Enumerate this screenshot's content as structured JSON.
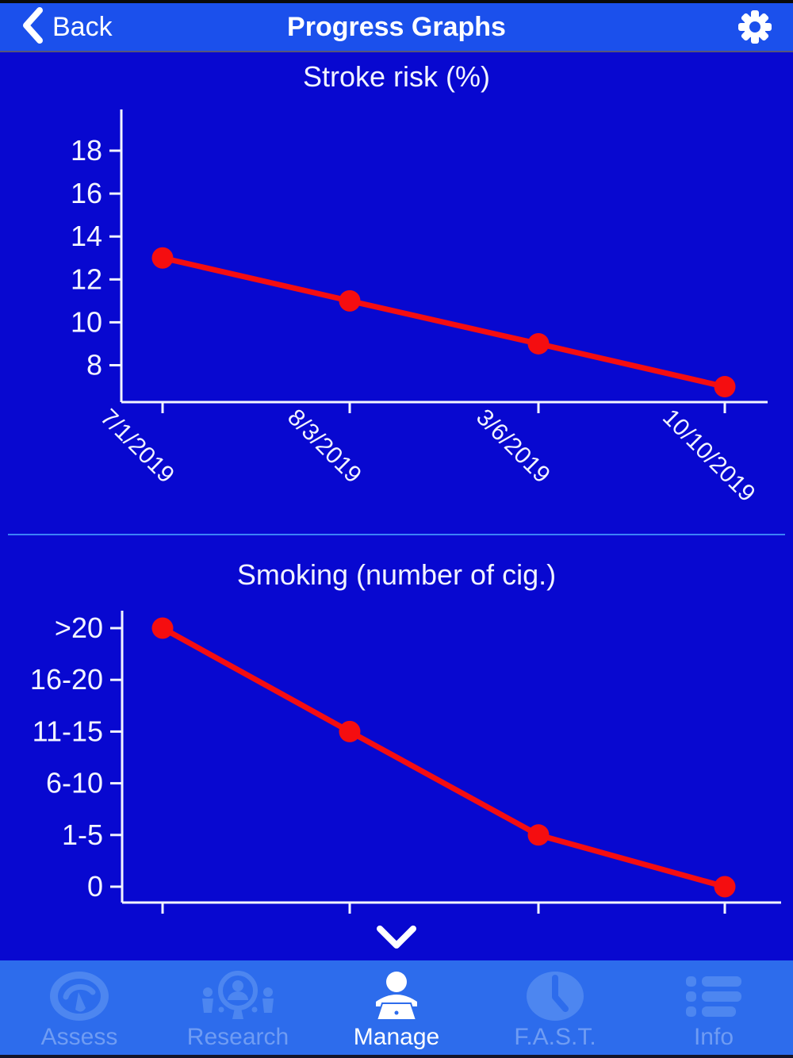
{
  "header": {
    "back_label": "Back",
    "title": "Progress Graphs"
  },
  "colors": {
    "body_background": "#0808d0",
    "header_background": "#1b50ec",
    "tabbar_background": "#2d6cec",
    "tab_icon": "#4d86f0",
    "tab_icon_active": "#ffffff",
    "series_red": "#f50d10",
    "axis_white": "#f2f4ff",
    "divider_blue": "#3b82f6"
  },
  "chart_data": [
    {
      "type": "line",
      "title": "Stroke risk (%)",
      "x_labels": [
        "7/1/2019",
        "8/3/2019",
        "3/6/2019",
        "10/10/2019"
      ],
      "y_ticks": [
        "8",
        "10",
        "12",
        "14",
        "16",
        "18"
      ],
      "ylim": [
        8,
        18
      ],
      "values": [
        13,
        11,
        9,
        7
      ],
      "series_color": "#f50d10",
      "grid": false,
      "legend": "none"
    },
    {
      "type": "line",
      "title": "Smoking (number of cig.)",
      "x_labels": [],
      "x_tick_count": 4,
      "y_categories": [
        "0",
        "1-5",
        "6-10",
        "11-15",
        "16-20",
        ">20"
      ],
      "values": [
        ">20",
        "11-15",
        "1-5",
        "0"
      ],
      "series_color": "#f50d10",
      "grid": false,
      "legend": "none"
    }
  ],
  "scroll_hint": {
    "icon": "chevron-down-icon"
  },
  "tabbar": {
    "items": [
      {
        "label": "Assess",
        "icon": "gauge-icon",
        "active": false
      },
      {
        "label": "Research",
        "icon": "people-search-icon",
        "active": false
      },
      {
        "label": "Manage",
        "icon": "person-laptop-icon",
        "active": true
      },
      {
        "label": "F.A.S.T.",
        "icon": "clock-icon",
        "active": false
      },
      {
        "label": "Info",
        "icon": "list-icon",
        "active": false
      }
    ]
  }
}
